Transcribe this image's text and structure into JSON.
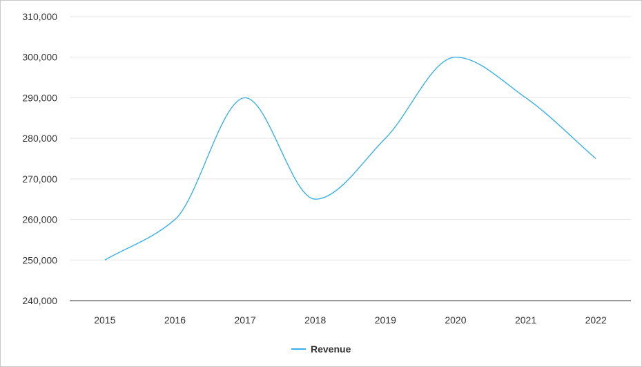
{
  "chart_data": {
    "type": "line",
    "title": "",
    "xlabel": "",
    "ylabel": "",
    "categories": [
      "2015",
      "2016",
      "2017",
      "2018",
      "2019",
      "2020",
      "2021",
      "2022"
    ],
    "series": [
      {
        "name": "Revenue",
        "values": [
          250000,
          260000,
          290000,
          265000,
          280000,
          300000,
          290000,
          275000
        ],
        "color": "#3bb0e8"
      }
    ],
    "ylim": [
      240000,
      310000
    ],
    "yticks": [
      240000,
      250000,
      260000,
      270000,
      280000,
      290000,
      300000,
      310000
    ],
    "ytick_labels": [
      "240,000",
      "250,000",
      "260,000",
      "270,000",
      "280,000",
      "290,000",
      "300,000",
      "310,000"
    ],
    "grid": true,
    "smooth": true,
    "legend_position": "bottom-center"
  }
}
